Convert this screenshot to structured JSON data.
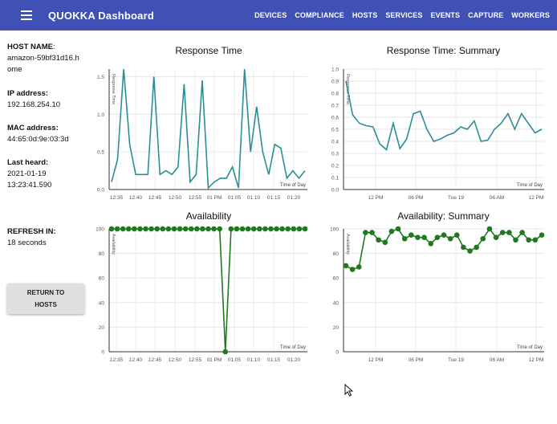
{
  "header": {
    "title": "QUOKKA Dashboard",
    "nav": [
      "DEVICES",
      "COMPLIANCE",
      "HOSTS",
      "SERVICES",
      "EVENTS",
      "CAPTURE",
      "WORKERS"
    ]
  },
  "host": {
    "name_label": "HOST NAME",
    "name_colon": ":",
    "name_value": "amazon-59bf31d16.home",
    "ip_label": "IP address:",
    "ip_value": "192.168.254.10",
    "mac_label": "MAC address:",
    "mac_value": "44:65:0d:9e:03:3d",
    "last_heard_label": "Last heard:",
    "last_heard_date": "2021-01-19",
    "last_heard_time": "13:23:41.590",
    "refresh_label": "REFRESH IN:",
    "refresh_value": "18 seconds"
  },
  "return_button": {
    "line1": "RETURN TO",
    "line2": "HOSTS"
  },
  "colors": {
    "appbar": "#3f51b5",
    "response_line": "#2a8f96",
    "availability": "#1f7a1f"
  },
  "icons": {
    "menu": "hamburger-menu-icon",
    "cursor": "mouse-pointer-icon"
  },
  "chart_data": [
    {
      "type": "line",
      "title": "Response Time",
      "ylabel": "Response Time",
      "xlabel": "Time of Day",
      "ylim": [
        0,
        1.6
      ],
      "yticks": [
        "0.0",
        "0.5",
        "1.0",
        "1.5"
      ],
      "xticks": [
        "12:35",
        "12:40",
        "12:45",
        "12:50",
        "12:55",
        "01 PM",
        "01:05",
        "01:10",
        "01:15",
        "01:20"
      ],
      "values": [
        0.1,
        0.4,
        1.6,
        0.6,
        0.2,
        0.2,
        0.2,
        1.5,
        0.2,
        0.25,
        0.2,
        0.3,
        1.4,
        0.1,
        0.2,
        1.45,
        0.02,
        0.1,
        0.15,
        0.15,
        0.3,
        0.02,
        1.6,
        0.5,
        1.1,
        0.5,
        0.2,
        0.6,
        0.55,
        0.15,
        0.25,
        0.15,
        0.25
      ]
    },
    {
      "type": "line",
      "title": "Response Time: Summary",
      "ylabel": "Response Time",
      "xlabel": "Time of Day",
      "ylim": [
        0,
        1.0
      ],
      "yticks": [
        "0.0",
        "0.1",
        "0.2",
        "0.3",
        "0.4",
        "0.5",
        "0.6",
        "0.7",
        "0.8",
        "0.9",
        "1.0"
      ],
      "xticks": [
        "12 PM",
        "06 PM",
        "Tue 19",
        "06 AM",
        "12 PM"
      ],
      "values": [
        0.9,
        0.62,
        0.55,
        0.53,
        0.52,
        0.38,
        0.33,
        0.55,
        0.34,
        0.42,
        0.63,
        0.65,
        0.5,
        0.4,
        0.42,
        0.45,
        0.47,
        0.52,
        0.5,
        0.57,
        0.4,
        0.41,
        0.5,
        0.55,
        0.63,
        0.5,
        0.63,
        0.55,
        0.47,
        0.5
      ]
    },
    {
      "type": "line",
      "title": "Availability",
      "ylabel": "Availability",
      "xlabel": "Time of Day",
      "ylim": [
        0,
        100
      ],
      "yticks": [
        "0",
        "20",
        "40",
        "60",
        "80",
        "100"
      ],
      "xticks": [
        "12:35",
        "12:40",
        "12:45",
        "12:50",
        "12:55",
        "01 PM",
        "01:05",
        "01:10",
        "01:15",
        "01:20"
      ],
      "values": [
        100,
        100,
        100,
        100,
        100,
        100,
        100,
        100,
        100,
        100,
        100,
        100,
        100,
        100,
        100,
        100,
        100,
        100,
        100,
        100,
        0,
        100,
        100,
        100,
        100,
        100,
        100,
        100,
        100,
        100,
        100,
        100,
        100,
        100,
        100
      ]
    },
    {
      "type": "line",
      "title": "Availability: Summary",
      "ylabel": "Availability",
      "xlabel": "Time of Day",
      "ylim": [
        0,
        100
      ],
      "yticks": [
        "0",
        "20",
        "40",
        "60",
        "80",
        "100"
      ],
      "xticks": [
        "12 PM",
        "06 PM",
        "Tue 19",
        "06 AM",
        "12 PM"
      ],
      "values": [
        70,
        67,
        69,
        97,
        97,
        91,
        89,
        98,
        100,
        92,
        95,
        93,
        93,
        88,
        93,
        95,
        92,
        95,
        85,
        82,
        85,
        92,
        100,
        93,
        97,
        97,
        91,
        97,
        91,
        91,
        95
      ]
    }
  ]
}
